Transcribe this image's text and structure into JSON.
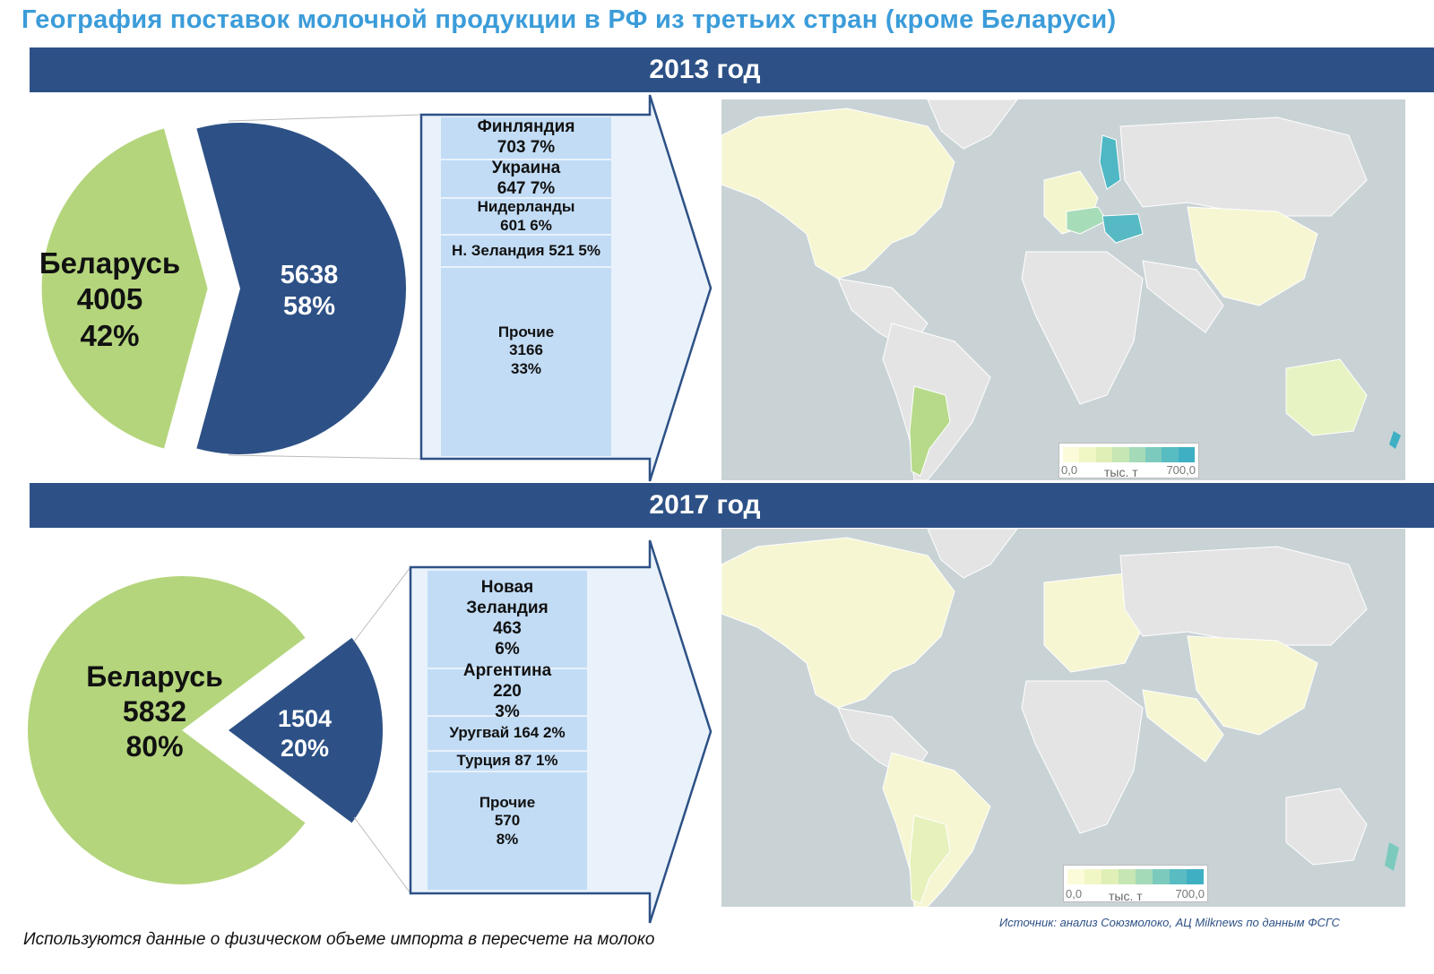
{
  "title": "География поставок молочной продукции в РФ из третьих стран (кроме Беларуси)",
  "colors": {
    "belarus": "#b4d57c",
    "other": "#2d5186",
    "segment": "#c2dcf5",
    "arrow": "#e9f2fb",
    "arrow_border": "#2d5186",
    "band": "#2d5186",
    "title": "#3b9cd9",
    "map_sea": "#c9d3d6",
    "map_land": "#e4e4e4"
  },
  "chart_data": [
    {
      "type": "pie",
      "title": "2013 год",
      "slices": [
        {
          "label": "Беларусь",
          "value": 4005,
          "percent": "42%"
        },
        {
          "label": "",
          "value": 5638,
          "percent": "58%"
        }
      ],
      "breakdown": [
        {
          "lines": "Финляндия\n703 7%",
          "value": 703,
          "percent": 7
        },
        {
          "lines": "Украина\n647 7%",
          "value": 647,
          "percent": 7
        },
        {
          "lines": "Нидерланды\n601 6%",
          "value": 601,
          "percent": 6
        },
        {
          "lines": "Н. Зеландия 521 5%",
          "value": 521,
          "percent": 5
        },
        {
          "lines": "Прочие\n3166\n33%",
          "value": 3166,
          "percent": 33
        }
      ],
      "map_legend": {
        "min": "0,0",
        "unit": "тыс. т",
        "max": "700,0"
      }
    },
    {
      "type": "pie",
      "title": "2017 год",
      "slices": [
        {
          "label": "Беларусь",
          "value": 5832,
          "percent": "80%"
        },
        {
          "label": "",
          "value": 1504,
          "percent": "20%"
        }
      ],
      "breakdown": [
        {
          "lines": "Новая\nЗеландия\n463\n6%",
          "value": 463,
          "percent": 6
        },
        {
          "lines": "Аргентина\n220\n3%",
          "value": 220,
          "percent": 3
        },
        {
          "lines": "Уругвай 164 2%",
          "value": 164,
          "percent": 2
        },
        {
          "lines": "Турция 87 1%",
          "value": 87,
          "percent": 1
        },
        {
          "lines": "Прочие\n570\n8%",
          "value": 570,
          "percent": 8
        }
      ],
      "map_legend": {
        "min": "0,0",
        "unit": "тыс. т",
        "max": "700,0"
      }
    }
  ],
  "legend_ramp": [
    "#fbfbd9",
    "#f1f6c5",
    "#dfefb6",
    "#c6e6b3",
    "#a4dab8",
    "#7ccabd",
    "#58bcc2",
    "#3fb0c4"
  ],
  "footnote": "Используются данные о физическом объеме импорта в пересчете на молоко",
  "source": "Источник: анализ Союзмолоко, АЦ Milknews по данным ФСГС"
}
